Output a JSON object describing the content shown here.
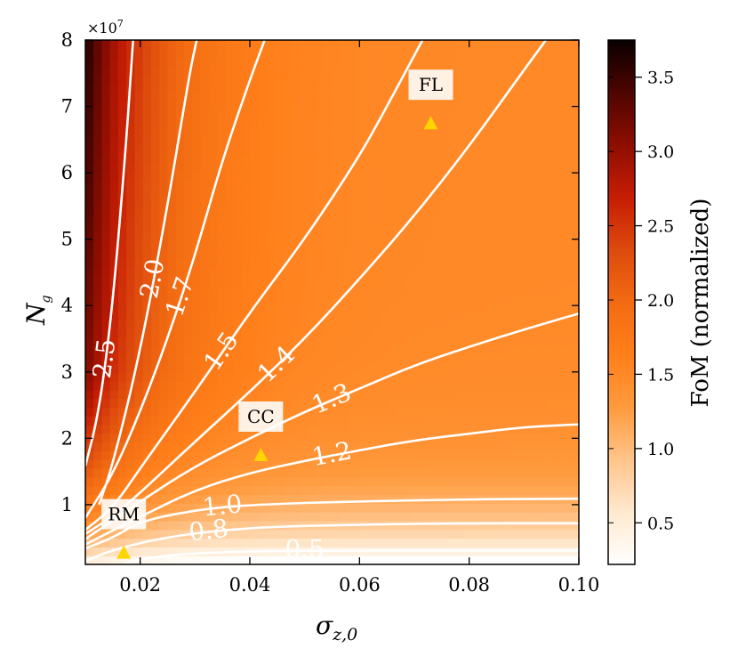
{
  "chart_data": {
    "type": "heatmap",
    "xlabel": "σ",
    "xlabel_sub": "z,0",
    "ylabel": "N",
    "ylabel_sub": "g",
    "y_exponent": "×10",
    "y_exponent_power": "7",
    "xlim": [
      0.01,
      0.1
    ],
    "ylim": [
      0.1,
      8.0
    ],
    "x_ticks": [
      0.02,
      0.04,
      0.06,
      0.08,
      0.1
    ],
    "x_tick_labels": [
      "0.02",
      "0.04",
      "0.06",
      "0.08",
      "0.10"
    ],
    "y_ticks": [
      1,
      2,
      3,
      4,
      5,
      6,
      7,
      8
    ],
    "y_tick_labels": [
      "1",
      "2",
      "3",
      "4",
      "5",
      "6",
      "7",
      "8"
    ],
    "colorbar": {
      "label": "FoM (normalized)",
      "range": [
        0.22,
        3.75
      ],
      "ticks": [
        0.5,
        1.0,
        1.5,
        2.0,
        2.5,
        3.0,
        3.5
      ],
      "tick_labels": [
        "0.5",
        "1.0",
        "1.5",
        "2.0",
        "2.5",
        "3.0",
        "3.5"
      ],
      "colormap": [
        "#ffffff",
        "#ffe9cf",
        "#ffc48a",
        "#ff9a3d",
        "#ff7f1a",
        "#f26b12",
        "#dd4a0d",
        "#c61d04",
        "#8e0e00",
        "#4e0500",
        "#0a0000"
      ]
    },
    "contours": [
      {
        "level": "0.5",
        "points": [
          [
            0.017,
            0.12
          ],
          [
            0.025,
            0.25
          ],
          [
            0.04,
            0.3
          ],
          [
            0.06,
            0.31
          ],
          [
            0.08,
            0.31
          ],
          [
            0.1,
            0.31
          ]
        ]
      },
      {
        "level": "0.8",
        "points": [
          [
            0.01,
            0.15
          ],
          [
            0.015,
            0.32
          ],
          [
            0.025,
            0.52
          ],
          [
            0.04,
            0.66
          ],
          [
            0.06,
            0.7
          ],
          [
            0.08,
            0.72
          ],
          [
            0.1,
            0.72
          ]
        ]
      },
      {
        "level": "1.0",
        "points": [
          [
            0.01,
            0.34
          ],
          [
            0.015,
            0.5
          ],
          [
            0.02,
            0.75
          ],
          [
            0.03,
            0.92
          ],
          [
            0.04,
            1.0
          ],
          [
            0.06,
            1.05
          ],
          [
            0.08,
            1.08
          ],
          [
            0.1,
            1.09
          ]
        ]
      },
      {
        "level": "1.2",
        "points": [
          [
            0.01,
            0.4
          ],
          [
            0.02,
            0.82
          ],
          [
            0.03,
            1.22
          ],
          [
            0.04,
            1.48
          ],
          [
            0.05,
            1.66
          ],
          [
            0.06,
            1.82
          ],
          [
            0.07,
            1.97
          ],
          [
            0.08,
            2.07
          ],
          [
            0.09,
            2.17
          ],
          [
            0.1,
            2.21
          ]
        ]
      },
      {
        "level": "1.3",
        "points": [
          [
            0.01,
            0.48
          ],
          [
            0.02,
            1.05
          ],
          [
            0.03,
            1.58
          ],
          [
            0.04,
            2.0
          ],
          [
            0.05,
            2.4
          ],
          [
            0.06,
            2.75
          ],
          [
            0.07,
            3.1
          ],
          [
            0.08,
            3.38
          ],
          [
            0.09,
            3.64
          ],
          [
            0.1,
            3.88
          ]
        ]
      },
      {
        "level": "1.4",
        "points": [
          [
            0.01,
            0.56
          ],
          [
            0.015,
            0.82
          ],
          [
            0.02,
            1.18
          ],
          [
            0.03,
            1.95
          ],
          [
            0.04,
            2.7
          ],
          [
            0.05,
            3.5
          ],
          [
            0.06,
            4.4
          ],
          [
            0.07,
            5.35
          ],
          [
            0.08,
            6.4
          ],
          [
            0.09,
            7.55
          ],
          [
            0.094,
            8.0
          ]
        ]
      },
      {
        "level": "1.5",
        "points": [
          [
            0.01,
            0.62
          ],
          [
            0.015,
            0.95
          ],
          [
            0.02,
            1.55
          ],
          [
            0.03,
            2.7
          ],
          [
            0.04,
            3.9
          ],
          [
            0.05,
            5.0
          ],
          [
            0.06,
            6.25
          ],
          [
            0.065,
            7.0
          ],
          [
            0.0715,
            8.0
          ]
        ]
      },
      {
        "level": "1.7",
        "points": [
          [
            0.01,
            0.8
          ],
          [
            0.015,
            1.45
          ],
          [
            0.02,
            2.4
          ],
          [
            0.025,
            3.5
          ],
          [
            0.03,
            4.75
          ],
          [
            0.035,
            6.2
          ],
          [
            0.04,
            7.4
          ],
          [
            0.0427,
            8.0
          ]
        ]
      },
      {
        "level": "2.0",
        "points": [
          [
            0.0125,
            1.0
          ],
          [
            0.015,
            1.6
          ],
          [
            0.02,
            3.3
          ],
          [
            0.025,
            5.5
          ],
          [
            0.029,
            7.5
          ],
          [
            0.0303,
            8.0
          ]
        ]
      },
      {
        "level": "2.5",
        "points": [
          [
            0.01,
            1.58
          ],
          [
            0.0125,
            2.4
          ],
          [
            0.015,
            4.0
          ],
          [
            0.0175,
            6.5
          ],
          [
            0.0187,
            8.0
          ]
        ]
      }
    ],
    "markers": [
      {
        "label": "RM",
        "x": 0.017,
        "y": 0.28
      },
      {
        "label": "CC",
        "x": 0.042,
        "y": 1.75
      },
      {
        "label": "FL",
        "x": 0.073,
        "y": 6.75
      }
    ]
  }
}
